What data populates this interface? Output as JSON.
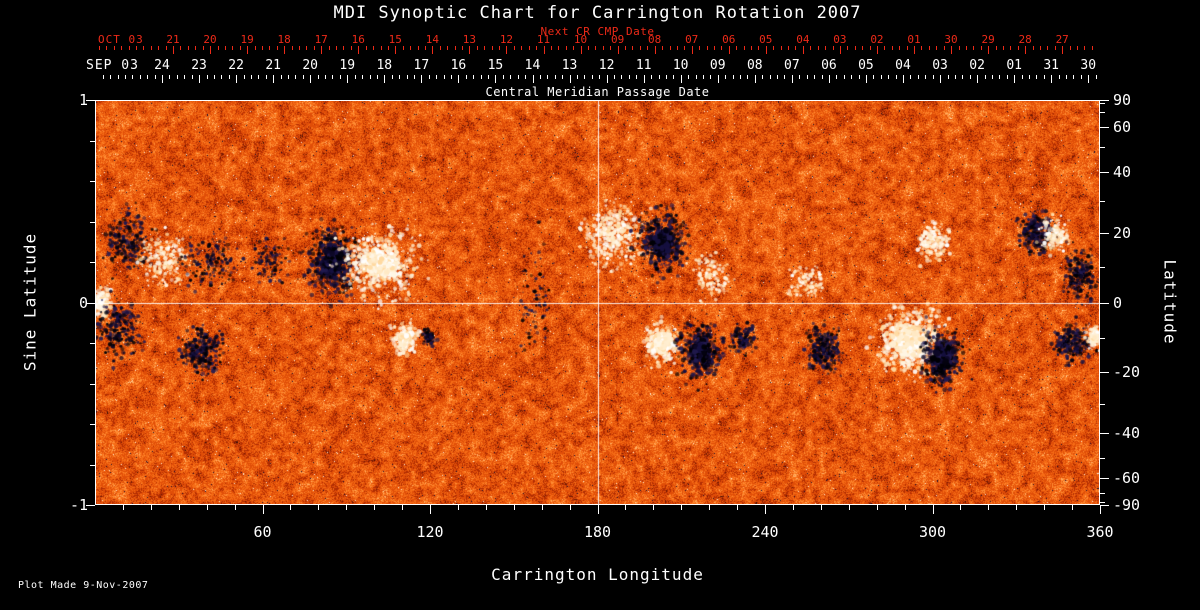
{
  "title": "MDI Synoptic Chart for Carrington Rotation 2007",
  "footer": {
    "plot_made": "Plot Made  9-Nov-2007"
  },
  "colors": {
    "background": "#000000",
    "axis_text": "#ffffff",
    "next_cr_axis": "#ee2a18",
    "grid_line": "#ffffff",
    "positive_field": "#fff6e4",
    "negative_field": "#100a30",
    "quiet_field_base": "#e04e08"
  },
  "chart_data": {
    "type": "heatmap",
    "description": "Full-disk solar synoptic magnetogram map for Carrington rotation 2007; orange-red mottled quiet-sun field with bipolar active regions shown as white (positive polarity) and dark navy (negative polarity) patches.",
    "title": "MDI Synoptic Chart for Carrington Rotation 2007",
    "xlabel": "Carrington Longitude",
    "ylabel_left": "Sine Latitude",
    "ylabel_right": "Latitude",
    "xlim": [
      0,
      360
    ],
    "ylim_sine": [
      -1,
      1
    ],
    "grid_lines": {
      "vertical_lon": 180,
      "horizontal_sine": 0
    },
    "x_ticks": [
      {
        "value": 60,
        "label": "60"
      },
      {
        "value": 120,
        "label": "120"
      },
      {
        "value": 180,
        "label": "180"
      },
      {
        "value": 240,
        "label": "240"
      },
      {
        "value": 300,
        "label": "300"
      },
      {
        "value": 360,
        "label": "360"
      }
    ],
    "left_ticks": [
      {
        "value": 1,
        "label": "1"
      },
      {
        "value": 0,
        "label": "0"
      },
      {
        "value": -1,
        "label": "-1"
      }
    ],
    "right_ticks": [
      {
        "lat": 90,
        "label": "90"
      },
      {
        "lat": 60,
        "label": "60"
      },
      {
        "lat": 40,
        "label": "40"
      },
      {
        "lat": 20,
        "label": "20"
      },
      {
        "lat": 0,
        "label": "0"
      },
      {
        "lat": -20,
        "label": "-20"
      },
      {
        "lat": -40,
        "label": "-40"
      },
      {
        "lat": -60,
        "label": "-60"
      },
      {
        "lat": -90,
        "label": "-90"
      }
    ],
    "top_axis": {
      "label": "Next CR CMP Date",
      "month_label": "OCT 03",
      "day_labels": [
        "21",
        "20",
        "19",
        "18",
        "17",
        "16",
        "15",
        "14",
        "13",
        "12",
        "11",
        "10",
        "09",
        "08",
        "07",
        "06",
        "05",
        "04",
        "03",
        "02",
        "01",
        "30",
        "29",
        "28",
        "27"
      ]
    },
    "date_axis": {
      "label": "Central Meridian Passage Date",
      "month_label": "SEP 03",
      "day_labels": [
        "24",
        "23",
        "22",
        "21",
        "20",
        "19",
        "18",
        "17",
        "16",
        "15",
        "14",
        "13",
        "12",
        "11",
        "10",
        "09",
        "08",
        "07",
        "06",
        "05",
        "04",
        "03",
        "02",
        "01",
        "31",
        "30"
      ]
    },
    "field_palette": [
      {
        "t": 0.05,
        "c": "#30100a"
      },
      {
        "t": 0.12,
        "c": "#6e1804"
      },
      {
        "t": 0.3,
        "c": "#b02c02"
      },
      {
        "t": 0.55,
        "c": "#e04e08"
      },
      {
        "t": 0.75,
        "c": "#f66c16"
      },
      {
        "t": 0.88,
        "c": "#ff8d34"
      },
      {
        "t": 0.96,
        "c": "#ffb066"
      },
      {
        "t": 1.01,
        "c": "#ffdfae"
      }
    ],
    "active_regions": [
      {
        "lon": 2,
        "sin_lat": 0.0,
        "extent_lon": 7,
        "extent_sin": 0.12,
        "polarity": "positive",
        "strength": 1.0,
        "spots": 150
      },
      {
        "lon": 9,
        "sin_lat": -0.13,
        "extent_lon": 14,
        "extent_sin": 0.24,
        "polarity": "negative",
        "strength": 0.8,
        "spots": 240
      },
      {
        "lon": 12,
        "sin_lat": 0.3,
        "extent_lon": 13,
        "extent_sin": 0.26,
        "polarity": "negative",
        "strength": 0.8,
        "spots": 240
      },
      {
        "lon": 25,
        "sin_lat": 0.21,
        "extent_lon": 16,
        "extent_sin": 0.22,
        "polarity": "positive",
        "strength": 0.7,
        "spots": 220
      },
      {
        "lon": 38,
        "sin_lat": -0.24,
        "extent_lon": 12,
        "extent_sin": 0.2,
        "polarity": "negative",
        "strength": 0.85,
        "spots": 260
      },
      {
        "lon": 42,
        "sin_lat": 0.2,
        "extent_lon": 18,
        "extent_sin": 0.24,
        "polarity": "negative",
        "strength": 0.6,
        "spots": 170
      },
      {
        "lon": 63,
        "sin_lat": 0.2,
        "extent_lon": 14,
        "extent_sin": 0.18,
        "polarity": "negative",
        "strength": 0.5,
        "spots": 110
      },
      {
        "lon": 85,
        "sin_lat": 0.2,
        "extent_lon": 16,
        "extent_sin": 0.3,
        "polarity": "negative",
        "strength": 0.95,
        "spots": 480
      },
      {
        "lon": 102,
        "sin_lat": 0.19,
        "extent_lon": 24,
        "extent_sin": 0.28,
        "polarity": "positive",
        "strength": 0.9,
        "spots": 520
      },
      {
        "lon": 111,
        "sin_lat": -0.18,
        "extent_lon": 9,
        "extent_sin": 0.13,
        "polarity": "positive",
        "strength": 1.0,
        "spots": 170
      },
      {
        "lon": 120,
        "sin_lat": -0.18,
        "extent_lon": 4,
        "extent_sin": 0.07,
        "polarity": "negative",
        "strength": 0.85,
        "spots": 60
      },
      {
        "lon": 157,
        "sin_lat": 0.02,
        "extent_lon": 12,
        "extent_sin": 0.5,
        "polarity": "negative",
        "strength": 0.5,
        "spots": 90
      },
      {
        "lon": 186,
        "sin_lat": 0.33,
        "extent_lon": 18,
        "extent_sin": 0.26,
        "polarity": "positive",
        "strength": 0.85,
        "spots": 400
      },
      {
        "lon": 203,
        "sin_lat": 0.3,
        "extent_lon": 16,
        "extent_sin": 0.28,
        "polarity": "negative",
        "strength": 0.9,
        "spots": 400
      },
      {
        "lon": 220,
        "sin_lat": 0.12,
        "extent_lon": 13,
        "extent_sin": 0.22,
        "polarity": "positive",
        "strength": 0.6,
        "spots": 140
      },
      {
        "lon": 203,
        "sin_lat": -0.2,
        "extent_lon": 12,
        "extent_sin": 0.18,
        "polarity": "positive",
        "strength": 0.95,
        "spots": 260
      },
      {
        "lon": 217,
        "sin_lat": -0.24,
        "extent_lon": 14,
        "extent_sin": 0.26,
        "polarity": "negative",
        "strength": 0.9,
        "spots": 360
      },
      {
        "lon": 232,
        "sin_lat": -0.18,
        "extent_lon": 9,
        "extent_sin": 0.13,
        "polarity": "negative",
        "strength": 0.8,
        "spots": 130
      },
      {
        "lon": 255,
        "sin_lat": 0.1,
        "extent_lon": 12,
        "extent_sin": 0.16,
        "polarity": "positive",
        "strength": 0.55,
        "spots": 110
      },
      {
        "lon": 261,
        "sin_lat": -0.23,
        "extent_lon": 11,
        "extent_sin": 0.2,
        "polarity": "negative",
        "strength": 0.85,
        "spots": 280
      },
      {
        "lon": 292,
        "sin_lat": -0.19,
        "extent_lon": 20,
        "extent_sin": 0.26,
        "polarity": "positive",
        "strength": 1.0,
        "spots": 700
      },
      {
        "lon": 304,
        "sin_lat": -0.27,
        "extent_lon": 13,
        "extent_sin": 0.24,
        "polarity": "negative",
        "strength": 0.95,
        "spots": 420
      },
      {
        "lon": 300,
        "sin_lat": 0.3,
        "extent_lon": 10,
        "extent_sin": 0.15,
        "polarity": "positive",
        "strength": 0.85,
        "spots": 200
      },
      {
        "lon": 337,
        "sin_lat": 0.34,
        "extent_lon": 11,
        "extent_sin": 0.18,
        "polarity": "negative",
        "strength": 0.85,
        "spots": 280
      },
      {
        "lon": 344,
        "sin_lat": 0.33,
        "extent_lon": 8,
        "extent_sin": 0.15,
        "polarity": "positive",
        "strength": 0.8,
        "spots": 170
      },
      {
        "lon": 353,
        "sin_lat": 0.14,
        "extent_lon": 10,
        "extent_sin": 0.24,
        "polarity": "negative",
        "strength": 0.8,
        "spots": 240
      },
      {
        "lon": 350,
        "sin_lat": -0.2,
        "extent_lon": 12,
        "extent_sin": 0.17,
        "polarity": "negative",
        "strength": 0.8,
        "spots": 240
      },
      {
        "lon": 358,
        "sin_lat": -0.17,
        "extent_lon": 5,
        "extent_sin": 0.1,
        "polarity": "positive",
        "strength": 0.9,
        "spots": 90
      }
    ]
  }
}
